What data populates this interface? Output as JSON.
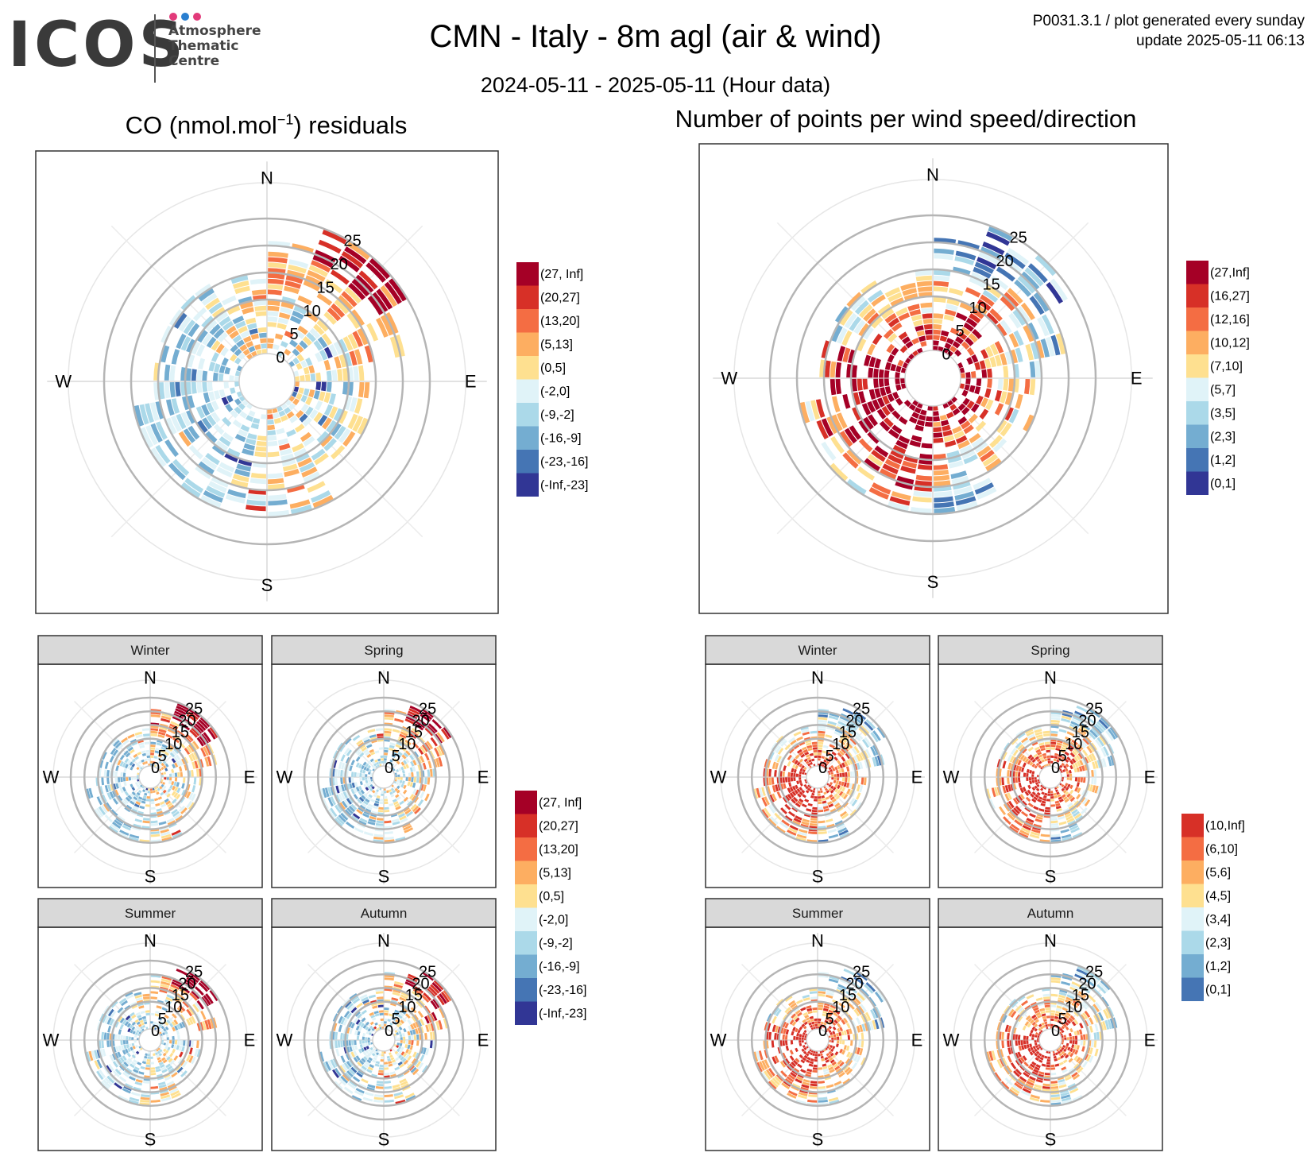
{
  "logo": {
    "wordmark": "ICOS",
    "subtitle_lines": [
      "Atmosphere",
      "Thematic",
      "Centre"
    ],
    "dot_colors": [
      "#e23a7a",
      "#2a7fd0",
      "#e23a7a"
    ]
  },
  "header": {
    "title": "CMN - Italy - 8m agl (air & wind)",
    "subtitle": "2024-05-11 - 2025-05-11 (Hour data)",
    "meta_line1": "P0031.3.1 / plot generated every sunday",
    "meta_line2": "update  2025-05-11 06:13"
  },
  "left": {
    "title_pre": "CO (nmol.mol",
    "title_sup": "−1",
    "title_post": ") residuals"
  },
  "right": {
    "title": "Number of points per wind speed/direction"
  },
  "chart_data": [
    {
      "type": "polar-heatmap",
      "id": "co-residuals-main",
      "title": "CO (nmol.mol−1) residuals",
      "compass_labels": [
        "N",
        "E",
        "S",
        "W"
      ],
      "radial_ticks": [
        0,
        5,
        10,
        15,
        20,
        25
      ],
      "radial_tick_labels": [
        "0",
        "5",
        "10",
        "15",
        "20",
        "25"
      ],
      "legend": {
        "labels": [
          "(27, Inf]",
          "(20,27]",
          "(13,20]",
          "(5,13]",
          "(0,5]",
          "(-2,0]",
          "(-9,-2]",
          "(-16,-9]",
          "(-23,-16]",
          "(-Inf,-23]"
        ],
        "colors": [
          "#a50026",
          "#d73027",
          "#f46d43",
          "#fdae61",
          "#fee090",
          "#e0f3f8",
          "#abd9e9",
          "#74add1",
          "#4575b4",
          "#313695"
        ]
      },
      "pattern_seed": 11,
      "pattern": "co"
    },
    {
      "type": "polar-heatmap",
      "id": "points-main",
      "title": "Number of points per wind speed/direction",
      "compass_labels": [
        "N",
        "E",
        "S",
        "W"
      ],
      "radial_ticks": [
        0,
        5,
        10,
        15,
        20,
        25
      ],
      "radial_tick_labels": [
        "0",
        "5",
        "10",
        "15",
        "20",
        "25"
      ],
      "legend": {
        "labels": [
          "(27,Inf]",
          "(16,27]",
          "(12,16]",
          "(10,12]",
          "(7,10]",
          "(5,7]",
          "(3,5]",
          "(2,3]",
          "(1,2]",
          "(0,1]"
        ],
        "colors": [
          "#a50026",
          "#d73027",
          "#f46d43",
          "#fdae61",
          "#fee090",
          "#e0f3f8",
          "#abd9e9",
          "#74add1",
          "#4575b4",
          "#313695"
        ]
      },
      "pattern_seed": 23,
      "pattern": "count"
    },
    {
      "type": "polar-heatmap-facets",
      "id": "co-residuals-seasonal",
      "facets": [
        "Winter",
        "Spring",
        "Summer",
        "Autumn"
      ],
      "compass_labels": [
        "N",
        "E",
        "S",
        "W"
      ],
      "radial_ticks": [
        0,
        5,
        10,
        15,
        20,
        25
      ],
      "radial_tick_labels": [
        "0",
        "5",
        "10",
        "15",
        "20",
        "25"
      ],
      "legend": {
        "labels": [
          "(27, Inf]",
          "(20,27]",
          "(13,20]",
          "(5,13]",
          "(0,5]",
          "(-2,0]",
          "(-9,-2]",
          "(-16,-9]",
          "(-23,-16]",
          "(-Inf,-23]"
        ],
        "colors": [
          "#a50026",
          "#d73027",
          "#f46d43",
          "#fdae61",
          "#fee090",
          "#e0f3f8",
          "#abd9e9",
          "#74add1",
          "#4575b4",
          "#313695"
        ]
      },
      "pattern": "co"
    },
    {
      "type": "polar-heatmap-facets",
      "id": "points-seasonal",
      "facets": [
        "Winter",
        "Spring",
        "Summer",
        "Autumn"
      ],
      "compass_labels": [
        "N",
        "E",
        "S",
        "W"
      ],
      "radial_ticks": [
        0,
        5,
        10,
        15,
        20,
        25
      ],
      "radial_tick_labels": [
        "0",
        "5",
        "10",
        "15",
        "20",
        "25"
      ],
      "legend": {
        "labels": [
          "(10,Inf]",
          "(6,10]",
          "(5,6]",
          "(4,5]",
          "(3,4]",
          "(2,3]",
          "(1,2]",
          "(0,1]"
        ],
        "colors": [
          "#d73027",
          "#f46d43",
          "#fdae61",
          "#fee090",
          "#e0f3f8",
          "#abd9e9",
          "#74add1",
          "#4575b4"
        ]
      },
      "pattern": "count"
    }
  ]
}
